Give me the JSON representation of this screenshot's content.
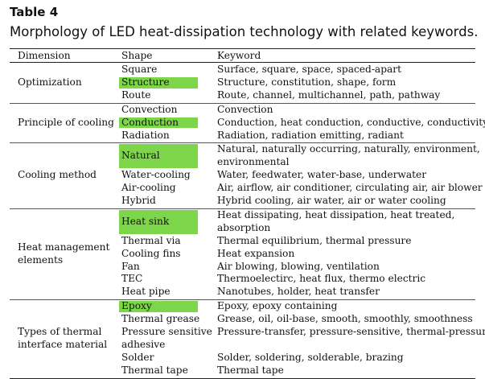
{
  "table": {
    "label": "Table 4",
    "caption": "Morphology of LED heat-dissipation technology with related keywords.",
    "headers": [
      "Dimension",
      "Shape",
      "Keyword"
    ],
    "highlight_color": "#7dd64a",
    "groups": [
      {
        "dimension": [
          "Optimization"
        ],
        "rows": [
          {
            "shape": [
              "Square"
            ],
            "keyword": [
              "Surface, square, space, spaced-apart"
            ],
            "highlight": false
          },
          {
            "shape": [
              "Structure"
            ],
            "keyword": [
              "Structure, constitution, shape, form"
            ],
            "highlight": true
          },
          {
            "shape": [
              "Route"
            ],
            "keyword": [
              "Route, channel, multichannel, path, pathway"
            ],
            "highlight": false
          }
        ]
      },
      {
        "dimension": [
          "Principle of cooling"
        ],
        "rows": [
          {
            "shape": [
              "Convection"
            ],
            "keyword": [
              "Convection"
            ],
            "highlight": false
          },
          {
            "shape": [
              "Conduction"
            ],
            "keyword": [
              "Conduction, heat conduction, conductive, conductivity"
            ],
            "highlight": true
          },
          {
            "shape": [
              "Radiation"
            ],
            "keyword": [
              "Radiation, radiation emitting, radiant"
            ],
            "highlight": false
          }
        ]
      },
      {
        "dimension": [
          "Cooling method"
        ],
        "rows": [
          {
            "shape": [
              "Natural"
            ],
            "keyword": [
              "Natural, naturally occurring, naturally, environment,",
              "environmental"
            ],
            "highlight": true
          },
          {
            "shape": [
              "Water-cooling"
            ],
            "keyword": [
              "Water, feedwater, water-base, underwater"
            ],
            "highlight": false
          },
          {
            "shape": [
              "Air-cooling"
            ],
            "keyword": [
              "Air, airflow, air conditioner, circulating air, air blower"
            ],
            "highlight": false
          },
          {
            "shape": [
              "Hybrid"
            ],
            "keyword": [
              "Hybrid cooling, air water, air or water cooling"
            ],
            "highlight": false
          }
        ]
      },
      {
        "dimension": [
          "Heat management",
          "elements"
        ],
        "rows": [
          {
            "shape": [
              "Heat sink"
            ],
            "keyword": [
              "Heat dissipating, heat dissipation, heat treated,",
              "absorption"
            ],
            "highlight": true
          },
          {
            "shape": [
              "Thermal via"
            ],
            "keyword": [
              "Thermal equilibrium, thermal pressure"
            ],
            "highlight": false
          },
          {
            "shape": [
              "Cooling fins"
            ],
            "keyword": [
              "Heat expansion"
            ],
            "highlight": false
          },
          {
            "shape": [
              "Fan"
            ],
            "keyword": [
              "Air blowing, blowing, ventilation"
            ],
            "highlight": false
          },
          {
            "shape": [
              "TEC"
            ],
            "keyword": [
              "Thermoelectirc, heat flux, thermo electric"
            ],
            "highlight": false
          },
          {
            "shape": [
              "Heat pipe"
            ],
            "keyword": [
              "Nanotubes, holder, heat transfer"
            ],
            "highlight": false
          }
        ]
      },
      {
        "dimension": [
          "Types of thermal",
          "interface material"
        ],
        "rows": [
          {
            "shape": [
              "Epoxy"
            ],
            "keyword": [
              "Epoxy, epoxy containing"
            ],
            "highlight": true
          },
          {
            "shape": [
              "Thermal grease"
            ],
            "keyword": [
              "Grease, oil, oil-base, smooth, smoothly, smoothness"
            ],
            "highlight": false
          },
          {
            "shape": [
              "Pressure sensitive",
              "adhesive"
            ],
            "keyword": [
              "Pressure-transfer, pressure-sensitive, thermal-pressure"
            ],
            "highlight": false
          },
          {
            "shape": [
              "Solder"
            ],
            "keyword": [
              "Solder, soldering, solderable, brazing"
            ],
            "highlight": false
          },
          {
            "shape": [
              "Thermal tape"
            ],
            "keyword": [
              "Thermal tape"
            ],
            "highlight": false
          }
        ]
      }
    ]
  }
}
